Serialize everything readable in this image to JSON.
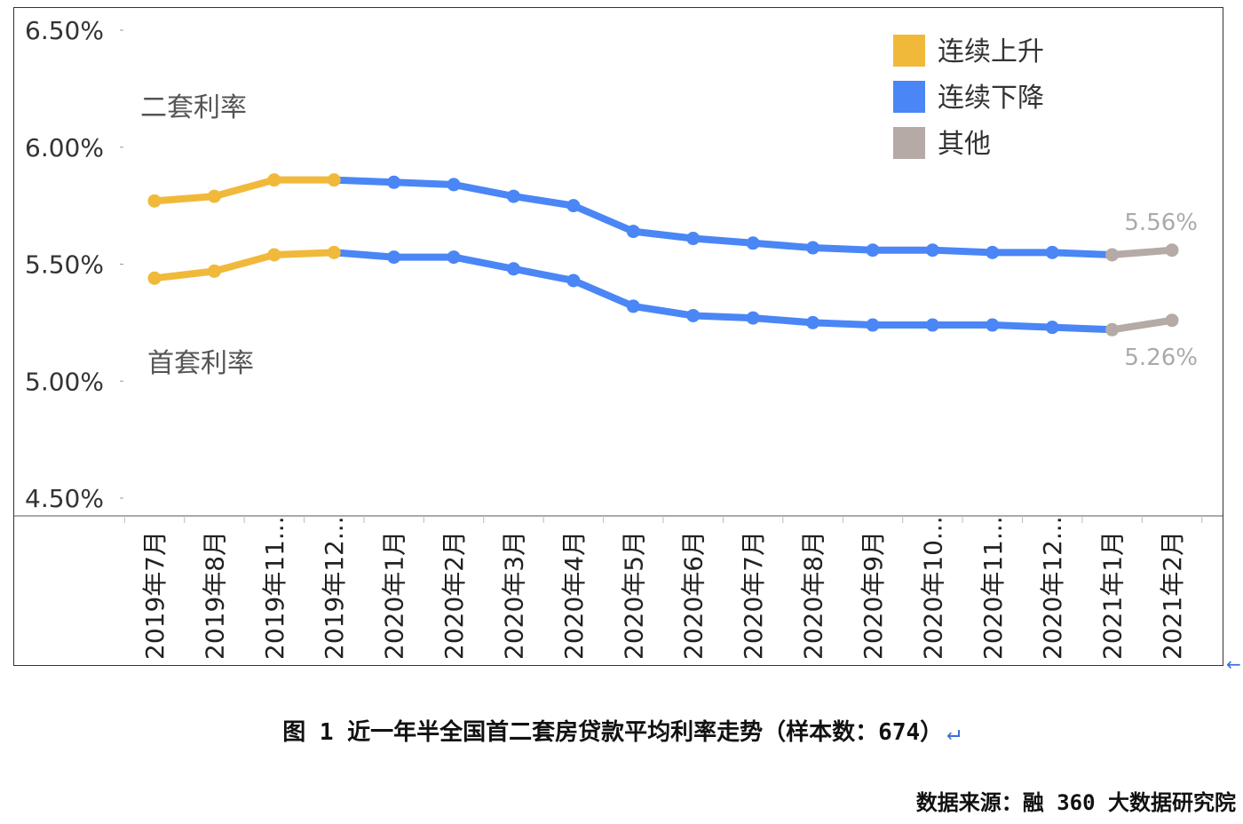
{
  "chart_data": {
    "type": "line",
    "categories": [
      "2019年7月",
      "2019年8月",
      "2019年11...",
      "2019年12...",
      "2020年1月",
      "2020年2月",
      "2020年3月",
      "2020年4月",
      "2020年5月",
      "2020年6月",
      "2020年7月",
      "2020年8月",
      "2020年9月",
      "2020年10...",
      "2020年11...",
      "2020年12...",
      "2021年1月",
      "2021年2月"
    ],
    "series": [
      {
        "name": "二套利率",
        "values": [
          5.77,
          5.79,
          5.86,
          5.86,
          5.85,
          5.84,
          5.79,
          5.75,
          5.64,
          5.61,
          5.59,
          5.57,
          5.56,
          5.56,
          5.55,
          5.55,
          5.54,
          5.56
        ]
      },
      {
        "name": "首套利率",
        "values": [
          5.44,
          5.47,
          5.54,
          5.55,
          5.53,
          5.53,
          5.48,
          5.43,
          5.32,
          5.28,
          5.27,
          5.25,
          5.24,
          5.24,
          5.24,
          5.23,
          5.22,
          5.26
        ]
      }
    ],
    "segment_states": [
      "上升",
      "上升",
      "上升",
      "下降",
      "下降",
      "下降",
      "下降",
      "下降",
      "下降",
      "下降",
      "下降",
      "下降",
      "下降",
      "下降",
      "下降",
      "下降",
      "其他"
    ],
    "y_ticks": [
      4.5,
      5.0,
      5.5,
      6.0,
      6.5
    ],
    "y_tick_labels": [
      "4.50%",
      "5.00%",
      "5.50%",
      "6.00%",
      "6.50%"
    ],
    "ylim": [
      4.5,
      6.5
    ],
    "series_labels": {
      "second": "二套利率",
      "first": "首套利率"
    },
    "end_labels": {
      "second": "5.56%",
      "first": "5.26%"
    },
    "legend": [
      {
        "key": "上升",
        "label": "连续上升",
        "color": "#f0b93a"
      },
      {
        "key": "下降",
        "label": "连续下降",
        "color": "#4a86f5"
      },
      {
        "key": "其他",
        "label": "其他",
        "color": "#b5aaa6"
      }
    ],
    "legend_position": "top-right"
  },
  "caption": {
    "text": "图 1 近一年半全国首二套房贷款平均利率走势（样本数：674）",
    "return_mark": "↵"
  },
  "source": "数据来源：融 360 大数据研究院",
  "frame_mark": "←"
}
